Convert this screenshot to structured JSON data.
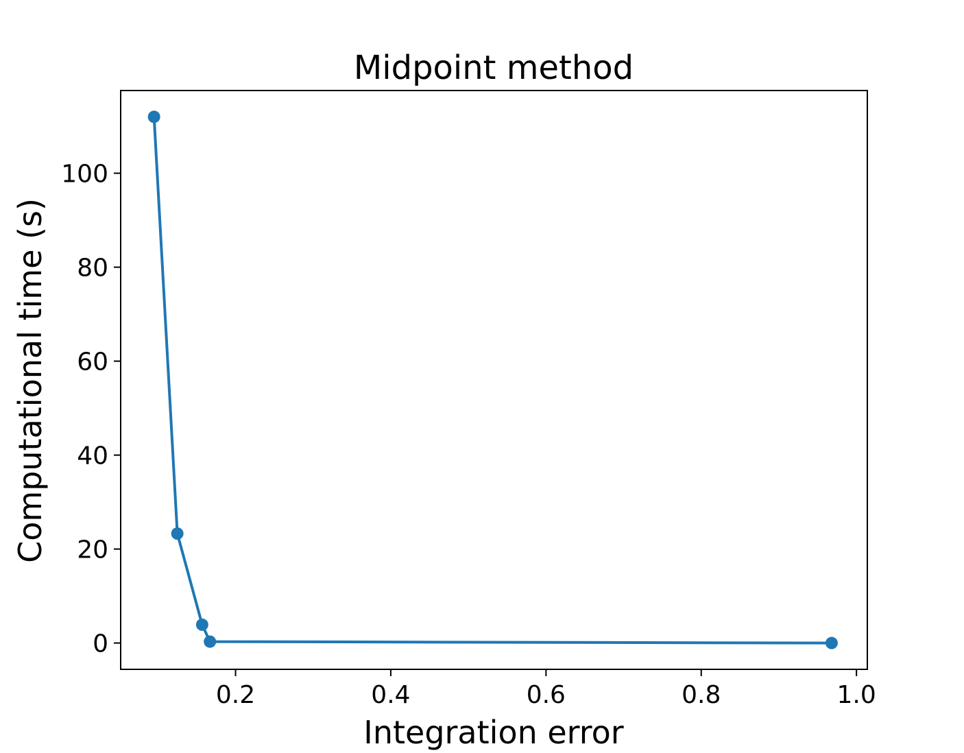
{
  "chart_data": {
    "type": "line",
    "title": "Midpoint method",
    "xlabel": "Integration error",
    "ylabel": "Computational time (s)",
    "xlim": [
      0.052,
      1.014
    ],
    "ylim": [
      -5.6,
      117.6
    ],
    "xticks": [
      0.2,
      0.4,
      0.6,
      0.8,
      1.0
    ],
    "xtick_labels": [
      "0.2",
      "0.4",
      "0.6",
      "0.8",
      "1.0"
    ],
    "yticks": [
      0,
      20,
      40,
      60,
      80,
      100
    ],
    "ytick_labels": [
      "0",
      "20",
      "40",
      "60",
      "80",
      "100"
    ],
    "grid": false,
    "series": [
      {
        "color": "#1f77b4",
        "marker": "circle",
        "x": [
          0.095,
          0.125,
          0.157,
          0.167,
          0.968
        ],
        "y": [
          112.0,
          23.3,
          3.9,
          0.3,
          0.0
        ]
      }
    ]
  }
}
